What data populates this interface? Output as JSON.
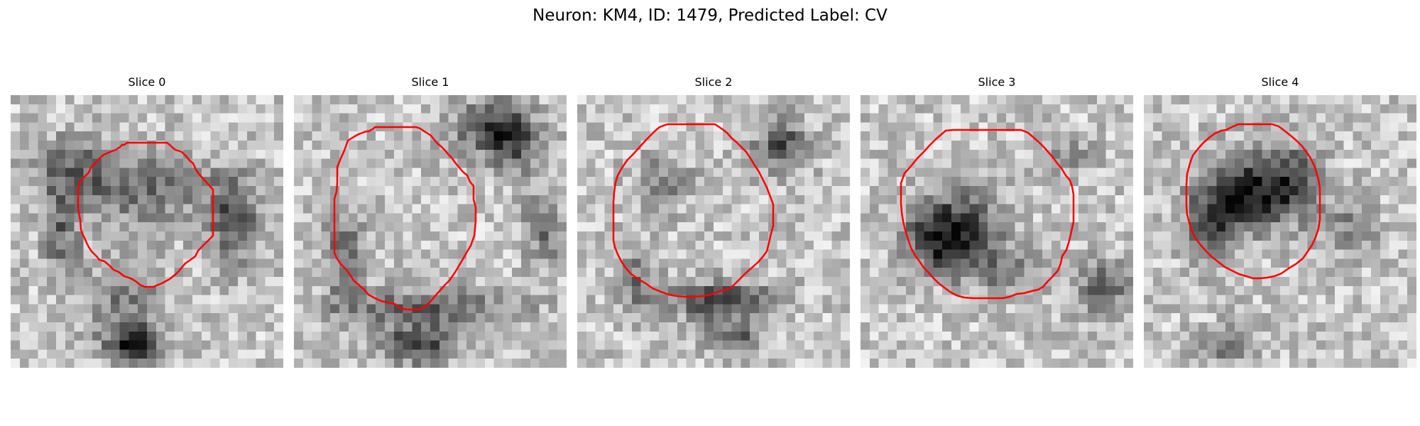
{
  "figure": {
    "title": "Neuron: KM4, ID: 1479, Predicted Label: CV",
    "contour_color": "#ff0000",
    "colormap": "grayscale"
  },
  "panels": [
    {
      "title": "Slice 0"
    },
    {
      "title": "Slice 1"
    },
    {
      "title": "Slice 2"
    },
    {
      "title": "Slice 3"
    },
    {
      "title": "Slice 4"
    }
  ]
}
